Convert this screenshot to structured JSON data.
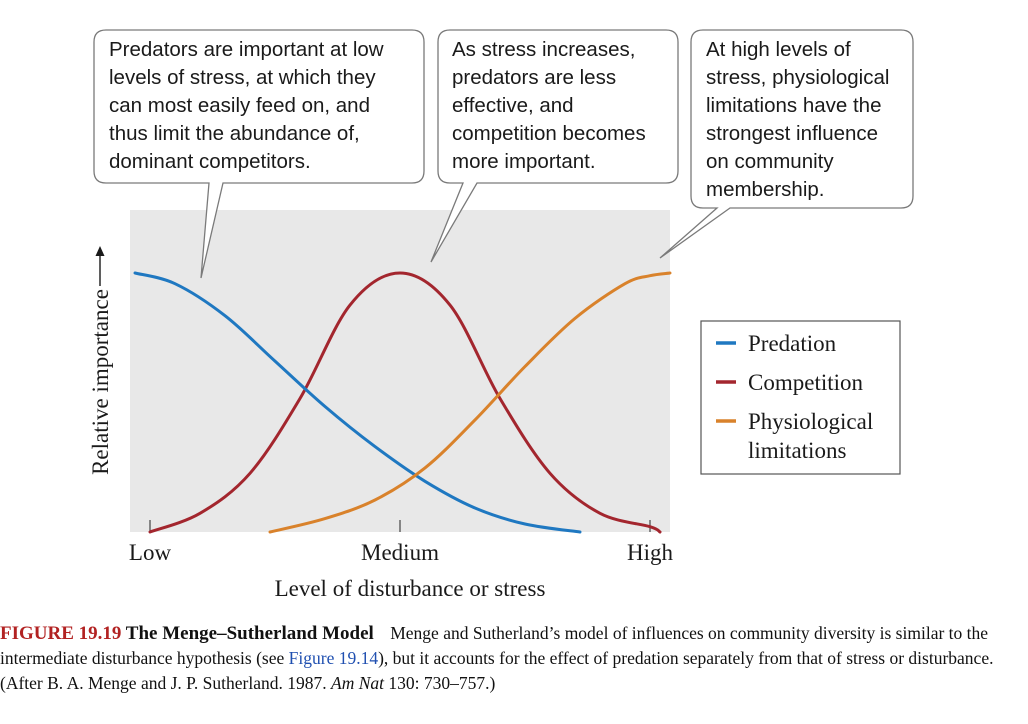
{
  "callouts": [
    {
      "text": "Predators are important at low\nlevels of stress, at which they\ncan most easily feed on, and\nthus limit the abundance of,\ndominant competitors."
    },
    {
      "text": "As stress increases,\npredators are less\neffective, and\ncompetition becomes\nmore important."
    },
    {
      "text": "At high levels of\nstress, physiological\nlimitations have the\nstrongest influence\non community\nmembership."
    }
  ],
  "legend": {
    "items": [
      {
        "label": "Predation",
        "color": "#1f78c1"
      },
      {
        "label": "Competition",
        "color": "#a3262e"
      },
      {
        "label": "Physiological\nlimitations",
        "color": "#d9822b"
      }
    ]
  },
  "caption": {
    "figure_number": "FIGURE 19.19",
    "title": "The Menge–Sutherland Model",
    "text_before_link": "Menge and Sutherland’s model of influences on community diversity is similar to the intermediate disturbance hypothesis (see ",
    "link_text": "Figure 19.14",
    "text_after_link": "), but it accounts for the effect of predation separately from that of stress or disturbance. (After B. A. Menge and J. P. Sutherland. 1987. ",
    "journal": "Am Nat",
    "citation_end": " 130: 730–757.)"
  },
  "chart_data": {
    "type": "line",
    "xlabel": "Level of disturbance or stress",
    "ylabel": "Relative importance",
    "ylabel_arrow": true,
    "x_tick_labels": [
      "Low",
      "Medium",
      "High"
    ],
    "x_tick_values": [
      0,
      50,
      100
    ],
    "xlim": [
      -4,
      104
    ],
    "ylim": [
      0,
      1
    ],
    "grid": false,
    "background": "#e8e8e8",
    "legend_position": "right",
    "series": [
      {
        "name": "Predation",
        "color": "#1f78c1",
        "x": [
          -3,
          5,
          15,
          25,
          35,
          45,
          55,
          65,
          75,
          86
        ],
        "y": [
          0.97,
          0.93,
          0.81,
          0.64,
          0.47,
          0.32,
          0.19,
          0.09,
          0.03,
          0.0
        ]
      },
      {
        "name": "Competition",
        "color": "#a3262e",
        "x": [
          0,
          10,
          20,
          30,
          40,
          50,
          60,
          70,
          80,
          90,
          100,
          102
        ],
        "y": [
          0.0,
          0.07,
          0.22,
          0.5,
          0.85,
          0.97,
          0.85,
          0.5,
          0.22,
          0.07,
          0.02,
          0.0
        ]
      },
      {
        "name": "Physiological limitations",
        "color": "#d9822b",
        "x": [
          24,
          35,
          45,
          55,
          65,
          75,
          85,
          95,
          100,
          104
        ],
        "y": [
          0.0,
          0.05,
          0.12,
          0.24,
          0.42,
          0.62,
          0.8,
          0.93,
          0.96,
          0.97
        ]
      }
    ]
  }
}
